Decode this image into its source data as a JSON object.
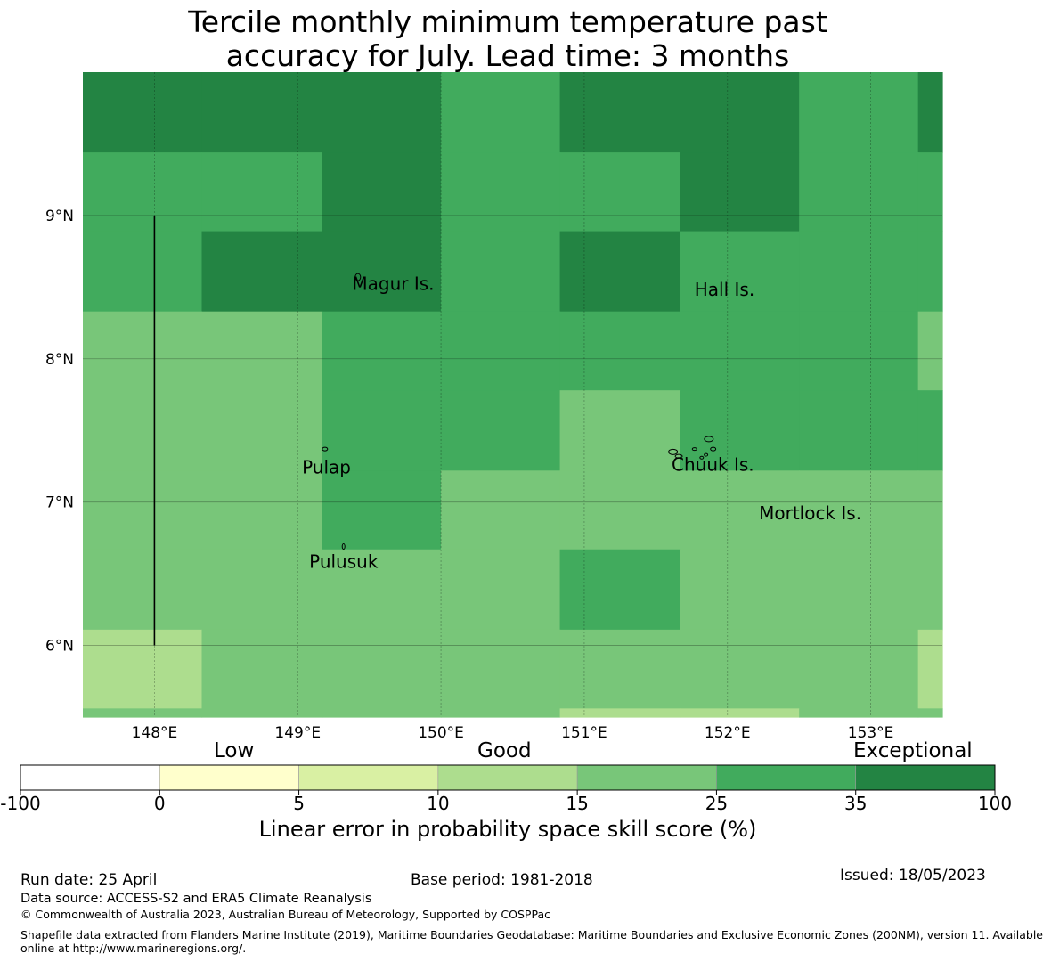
{
  "title_line1": "Tercile monthly minimum temperature past",
  "title_line2": "accuracy for July. Lead time: 3 months",
  "map": {
    "lon_range": [
      147.5,
      153.5
    ],
    "lat_range": [
      5.5,
      10.0
    ],
    "lon_ticks": [
      {
        "value": 148,
        "label": "148°E"
      },
      {
        "value": 149,
        "label": "149°E"
      },
      {
        "value": 150,
        "label": "150°E"
      },
      {
        "value": 151,
        "label": "151°E"
      },
      {
        "value": 152,
        "label": "152°E"
      },
      {
        "value": 153,
        "label": "153°E"
      }
    ],
    "lat_ticks": [
      {
        "value": 6,
        "label": "6°N"
      },
      {
        "value": 7,
        "label": "7°N"
      },
      {
        "value": 8,
        "label": "8°N"
      },
      {
        "value": 9,
        "label": "9°N"
      }
    ],
    "grid_lon_edges": [
      147.5,
      148.33,
      149.17,
      150.0,
      150.83,
      151.67,
      152.5,
      153.33,
      153.5
    ],
    "grid_lat_edges": [
      10.0,
      9.44,
      8.89,
      8.33,
      7.78,
      7.22,
      6.67,
      6.11,
      5.56,
      5.5
    ],
    "grid_classes": [
      [
        6,
        6,
        6,
        5,
        6,
        6,
        5,
        6
      ],
      [
        5,
        5,
        6,
        5,
        5,
        6,
        5,
        5
      ],
      [
        5,
        6,
        6,
        5,
        6,
        5,
        5,
        5
      ],
      [
        4,
        4,
        5,
        5,
        5,
        5,
        5,
        4
      ],
      [
        4,
        4,
        5,
        5,
        4,
        5,
        5,
        5
      ],
      [
        4,
        4,
        5,
        4,
        4,
        4,
        4,
        4
      ],
      [
        4,
        4,
        4,
        4,
        5,
        4,
        4,
        4
      ],
      [
        3,
        4,
        4,
        4,
        4,
        4,
        4,
        3
      ],
      [
        4,
        4,
        4,
        4,
        3,
        3,
        4,
        4
      ]
    ],
    "places": [
      {
        "name": "Magur Is.",
        "lon": 149.38,
        "lat": 8.48
      },
      {
        "name": "Hall Is.",
        "lon": 151.77,
        "lat": 8.44
      },
      {
        "name": "Pulap",
        "lon": 149.03,
        "lat": 7.2
      },
      {
        "name": "Chuuk Is.",
        "lon": 151.61,
        "lat": 7.22
      },
      {
        "name": "Mortlock Is.",
        "lon": 152.22,
        "lat": 6.88
      },
      {
        "name": "Pulusuk",
        "lon": 149.08,
        "lat": 6.54
      }
    ],
    "boundary_line": {
      "lon": 148.0,
      "lat_from": 6.0,
      "lat_to": 9.0
    }
  },
  "colorbar": {
    "boundaries": [
      "-100",
      "0",
      "5",
      "10",
      "15",
      "25",
      "35",
      "100"
    ],
    "colors": [
      "#ffffff",
      "#ffffcc",
      "#d9f0a3",
      "#addd8e",
      "#78c679",
      "#41ab5d",
      "#238443"
    ],
    "words": {
      "low": "Low",
      "good": "Good",
      "exceptional": "Exceptional"
    },
    "label": "Linear error in probability space skill score (%)"
  },
  "footer": {
    "run_date": "Run date: 25 April",
    "base_period": "Base period: 1981-2018",
    "issued": "Issued: 18/05/2023",
    "data_source": "Data source: ACCESS-S2 and ERA5 Climate Reanalysis",
    "copyright": "© Commonwealth of Australia 2023, Australian Bureau of Meteorology, Supported by COSPPac",
    "shapefile_line1": "Shapefile data extracted from Flanders Marine Institute (2019), Maritime Boundaries Geodatabase: Maritime Boundaries and Exclusive Economic Zones (200NM), version 11. Available",
    "shapefile_line2": "online at http://www.marineregions.org/."
  }
}
